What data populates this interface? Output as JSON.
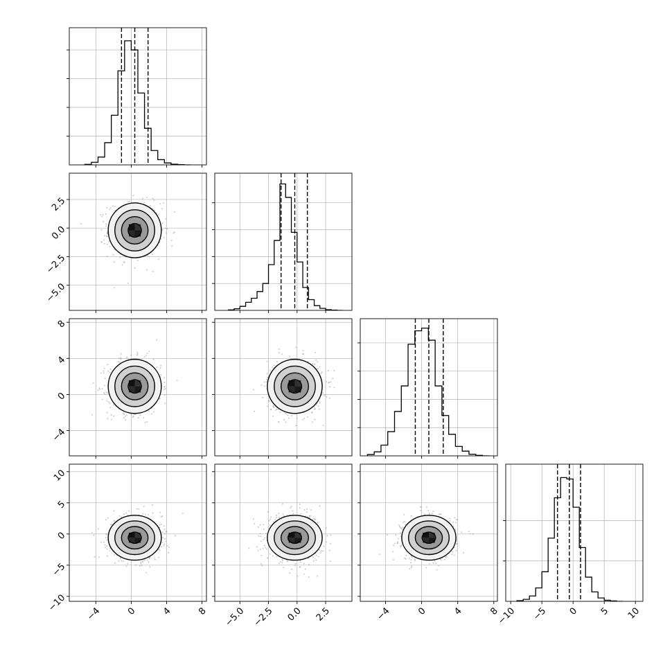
{
  "chart_data": {
    "type": "corner",
    "title": "",
    "n_params": 4,
    "params": [
      {
        "index": 0,
        "label": "",
        "range": [
          -7,
          8.5
        ],
        "ticks": [
          -4,
          0,
          4,
          8
        ],
        "tick_labels": [
          "−4",
          "0",
          "4",
          "8"
        ],
        "quantiles": [
          -1.1,
          0.4,
          1.9
        ]
      },
      {
        "index": 1,
        "label": "",
        "range": [
          -7.2,
          4.8
        ],
        "ticks": [
          -5.0,
          -2.5,
          0.0,
          2.5
        ],
        "tick_labels": [
          "−5.0",
          "−2.5",
          "0.0",
          "2.5"
        ],
        "quantiles": [
          -1.4,
          -0.2,
          0.9
        ]
      },
      {
        "index": 2,
        "label": "",
        "range": [
          -6.8,
          8.4
        ],
        "ticks": [
          -4,
          0,
          4,
          8
        ],
        "tick_labels": [
          "−4",
          "0",
          "4",
          "8"
        ],
        "quantiles": [
          -0.7,
          0.8,
          2.4
        ]
      },
      {
        "index": 3,
        "label": "",
        "range": [
          -10.8,
          11.2
        ],
        "ticks": [
          -10,
          -5,
          0,
          5,
          10
        ],
        "tick_labels": [
          "−10",
          "−5",
          "0",
          "5",
          "10"
        ],
        "quantiles": [
          -2.5,
          -0.6,
          1.2
        ]
      }
    ],
    "histograms": [
      {
        "param": 0,
        "bin_edges": [
          -5.25,
          -4.5,
          -3.75,
          -3.0,
          -2.25,
          -1.5,
          -0.75,
          0.0,
          0.75,
          1.5,
          2.25,
          3.0,
          3.75,
          4.5,
          5.25,
          6.0,
          6.75
        ],
        "counts": [
          0.004,
          0.02,
          0.06,
          0.17,
          0.38,
          0.72,
          0.95,
          0.88,
          0.55,
          0.28,
          0.11,
          0.04,
          0.015,
          0.005,
          0.002,
          0.0
        ],
        "ylim": [
          0,
          1.05
        ],
        "yticks": [
          0.22,
          0.44,
          0.66,
          0.88
        ]
      },
      {
        "param": 1,
        "bin_edges": [
          -6.0,
          -5.5,
          -5.0,
          -4.5,
          -4.0,
          -3.5,
          -3.0,
          -2.5,
          -2.0,
          -1.5,
          -1.0,
          -0.5,
          0.0,
          0.5,
          1.0,
          1.5,
          2.0,
          2.5,
          3.0,
          3.5,
          4.0
        ],
        "counts": [
          0.004,
          0.012,
          0.03,
          0.06,
          0.09,
          0.14,
          0.2,
          0.34,
          0.52,
          0.94,
          0.84,
          0.58,
          0.36,
          0.17,
          0.08,
          0.035,
          0.015,
          0.005,
          0.002,
          0.0
        ],
        "ylim": [
          0,
          1.02
        ],
        "yticks": [
          0.2,
          0.4,
          0.6,
          0.8
        ]
      },
      {
        "param": 2,
        "bin_edges": [
          -6.0,
          -5.25,
          -4.5,
          -3.75,
          -3.0,
          -2.25,
          -1.5,
          -0.75,
          0.0,
          0.75,
          1.5,
          2.25,
          3.0,
          3.75,
          4.5,
          5.25,
          6.0,
          6.75,
          7.5
        ],
        "counts": [
          0.01,
          0.03,
          0.08,
          0.18,
          0.33,
          0.52,
          0.83,
          0.93,
          0.95,
          0.86,
          0.52,
          0.3,
          0.16,
          0.07,
          0.035,
          0.012,
          0.004,
          0.0
        ],
        "ylim": [
          0,
          1.02
        ],
        "yticks": [
          0.21,
          0.42,
          0.63,
          0.84
        ]
      },
      {
        "param": 3,
        "bin_edges": [
          -9.0,
          -8.0,
          -7.0,
          -6.0,
          -5.0,
          -4.0,
          -3.0,
          -2.0,
          -1.0,
          0.0,
          1.0,
          2.0,
          3.0,
          4.0,
          5.0,
          6.0,
          7.0,
          8.0
        ],
        "counts": [
          0.005,
          0.015,
          0.04,
          0.1,
          0.22,
          0.47,
          0.77,
          0.92,
          0.91,
          0.7,
          0.4,
          0.18,
          0.07,
          0.025,
          0.008,
          0.003,
          0.0
        ],
        "ylim": [
          0,
          1.02
        ],
        "yticks": [
          0.3,
          0.6
        ]
      }
    ],
    "joint": [
      {
        "row": 1,
        "col": 0,
        "center": [
          0.4,
          -0.2
        ],
        "sigma": [
          1.5,
          1.2
        ],
        "n_points": 700,
        "contour_sigma_levels": [
          0.5,
          1.0,
          1.5,
          2.0
        ]
      },
      {
        "row": 2,
        "col": 0,
        "center": [
          0.4,
          0.9
        ],
        "sigma": [
          1.5,
          1.5
        ],
        "n_points": 700,
        "contour_sigma_levels": [
          0.5,
          1.0,
          1.5,
          2.0
        ]
      },
      {
        "row": 2,
        "col": 1,
        "center": [
          -0.2,
          0.9
        ],
        "sigma": [
          1.2,
          1.5
        ],
        "n_points": 700,
        "contour_sigma_levels": [
          0.5,
          1.0,
          1.5,
          2.0
        ]
      },
      {
        "row": 3,
        "col": 0,
        "center": [
          0.4,
          -0.6
        ],
        "sigma": [
          1.5,
          1.8
        ],
        "n_points": 700,
        "contour_sigma_levels": [
          0.5,
          1.0,
          1.5,
          2.0
        ]
      },
      {
        "row": 3,
        "col": 1,
        "center": [
          -0.2,
          -0.6
        ],
        "sigma": [
          1.2,
          1.8
        ],
        "n_points": 700,
        "contour_sigma_levels": [
          0.5,
          1.0,
          1.5,
          2.0
        ]
      },
      {
        "row": 3,
        "col": 2,
        "center": [
          0.8,
          -0.6
        ],
        "sigma": [
          1.5,
          1.8
        ],
        "n_points": 700,
        "contour_sigma_levels": [
          0.5,
          1.0,
          1.5,
          2.0
        ]
      }
    ],
    "grid": true,
    "line_color": "#000000",
    "point_color": "#9a9a9a",
    "grid_color": "#b0b0b0"
  }
}
